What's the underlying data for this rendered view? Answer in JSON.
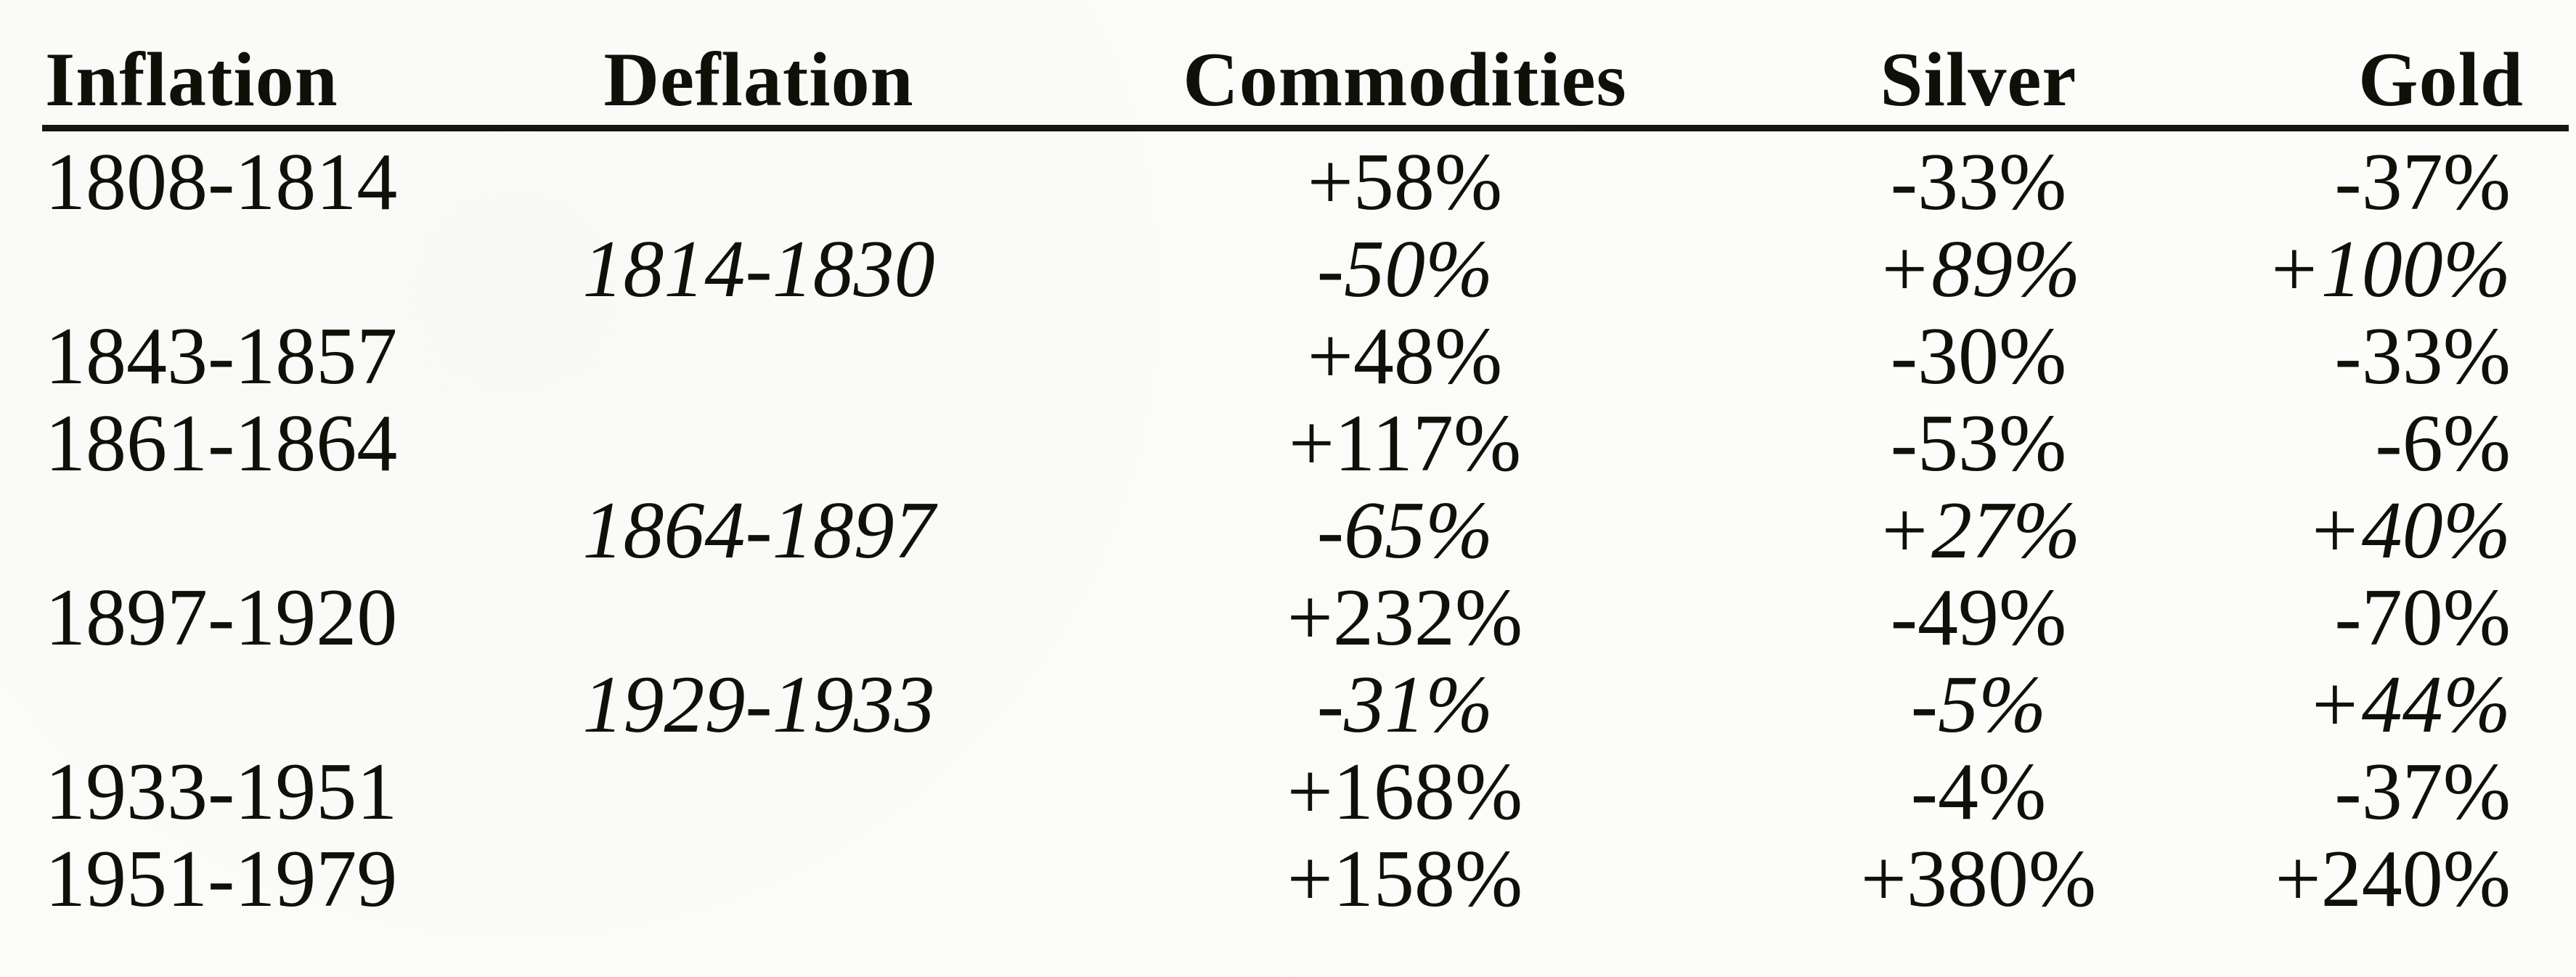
{
  "table": {
    "headers": {
      "inflation": "Inflation",
      "deflation": "Deflation",
      "commodities": "Commodities",
      "silver": "Silver",
      "gold": "Gold"
    },
    "rows": [
      {
        "style": "inflation",
        "inflation_period": "1808-1814",
        "deflation_period": "",
        "commodities": "+58%",
        "silver": "-33%",
        "gold": "-37%"
      },
      {
        "style": "deflation",
        "inflation_period": "",
        "deflation_period": "1814-1830",
        "commodities": "-50%",
        "silver": "+89%",
        "gold": "+100%"
      },
      {
        "style": "inflation",
        "inflation_period": "1843-1857",
        "deflation_period": "",
        "commodities": "+48%",
        "silver": "-30%",
        "gold": "-33%"
      },
      {
        "style": "inflation",
        "inflation_period": "1861-1864",
        "deflation_period": "",
        "commodities": "+117%",
        "silver": "-53%",
        "gold": "-6%"
      },
      {
        "style": "deflation",
        "inflation_period": "",
        "deflation_period": "1864-1897",
        "commodities": "-65%",
        "silver": "+27%",
        "gold": "+40%"
      },
      {
        "style": "inflation",
        "inflation_period": "1897-1920",
        "deflation_period": "",
        "commodities": "+232%",
        "silver": "-49%",
        "gold": "-70%"
      },
      {
        "style": "deflation",
        "inflation_period": "",
        "deflation_period": "1929-1933",
        "commodities": "-31%",
        "silver": "-5%",
        "gold": "+44%"
      },
      {
        "style": "inflation",
        "inflation_period": "1933-1951",
        "deflation_period": "",
        "commodities": "+168%",
        "silver": "-4%",
        "gold": "-37%"
      },
      {
        "style": "inflation",
        "inflation_period": "1951-1979",
        "deflation_period": "",
        "commodities": "+158%",
        "silver": "+380%",
        "gold": "+240%"
      }
    ]
  },
  "colors": {
    "ink": "#111008",
    "paper": "#fcfcfa",
    "rule": "#181611"
  }
}
